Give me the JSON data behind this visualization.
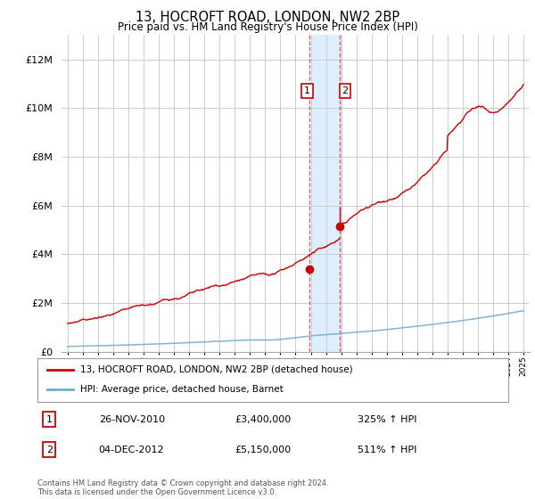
{
  "title": "13, HOCROFT ROAD, LONDON, NW2 2BP",
  "subtitle": "Price paid vs. HM Land Registry's House Price Index (HPI)",
  "hpi_label": "HPI: Average price, detached house, Barnet",
  "property_label": "13, HOCROFT ROAD, LONDON, NW2 2BP (detached house)",
  "sale1_date": "26-NOV-2010",
  "sale1_price": 3400000,
  "sale1_pct": "325%",
  "sale2_date": "04-DEC-2012",
  "sale2_price": 5150000,
  "sale2_pct": "511%",
  "footer": "Contains HM Land Registry data © Crown copyright and database right 2024.\nThis data is licensed under the Open Government Licence v3.0.",
  "ylim": [
    0,
    13000000
  ],
  "yticks": [
    0,
    2000000,
    4000000,
    6000000,
    8000000,
    10000000,
    12000000
  ],
  "sale1_x": 2010.9,
  "sale2_x": 2012.9,
  "highlight_xmin": 2011.0,
  "highlight_xmax": 2013.0,
  "property_color": "#cc0000",
  "hpi_color": "#77aacc",
  "highlight_color": "#ddeeff",
  "background_color": "#ffffff",
  "grid_color": "#cccccc",
  "xmin": 1995,
  "xmax": 2025
}
